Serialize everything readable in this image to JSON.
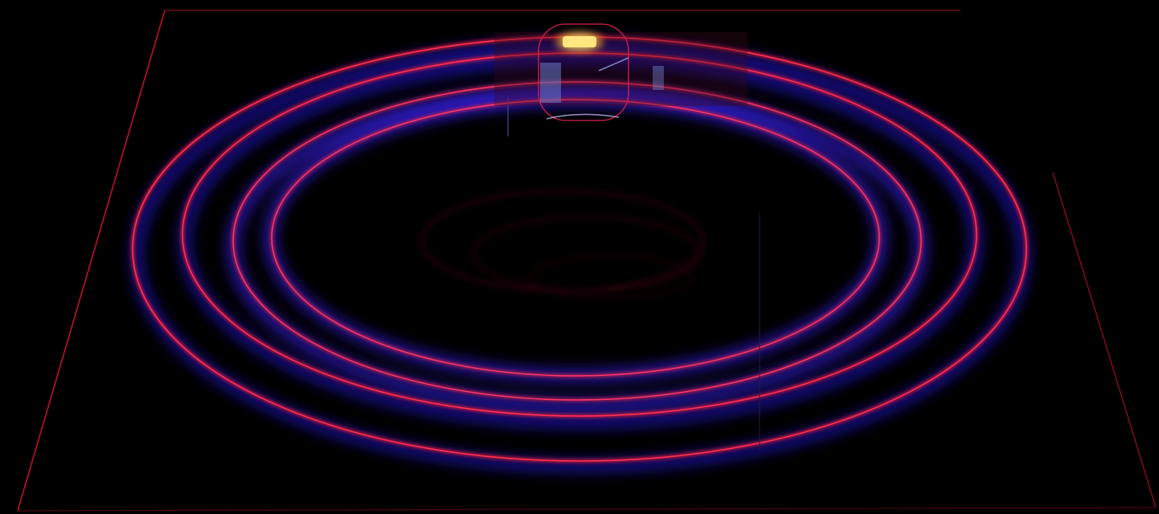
{
  "scene": {
    "description_visible_text": "",
    "background_color": "#000000",
    "floor_edge_color": "#c0102a",
    "ring_color": "#ff1a3a",
    "ring_glow_color": "#2a1aff",
    "reflection_color": "#5a0a1a",
    "object_glass_color": "#b8c8ff",
    "object_light_color": "#ffe680",
    "ring_count": 4
  }
}
